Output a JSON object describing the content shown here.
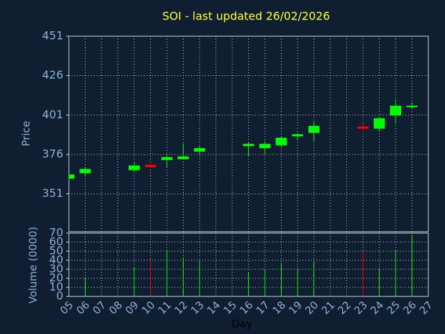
{
  "chart_data": [
    {
      "type": "candlestick",
      "title": "SOI - last updated 26/02/2026",
      "ylabel": "Price",
      "ylim": [
        327,
        451
      ],
      "yticks": [
        351,
        376,
        401,
        426,
        451
      ],
      "grid": true,
      "up_color": "#00ff00",
      "down_color": "#ff0000",
      "open": [
        360.6,
        364.1,
        null,
        null,
        366.0,
        369.4,
        372.5,
        373.0,
        377.8,
        null,
        null,
        381.3,
        380.0,
        381.8,
        387.5,
        389.7,
        null,
        null,
        393.7,
        392.4,
        400.7,
        406.0,
        null
      ],
      "high": [
        363.8,
        368.0,
        null,
        null,
        370.8,
        369.8,
        376.0,
        382.7,
        381.3,
        null,
        null,
        383.5,
        384.4,
        387.0,
        389.7,
        396.8,
        null,
        null,
        395.9,
        399.9,
        410.9,
        409.1,
        null
      ],
      "low": [
        360.0,
        362.0,
        null,
        null,
        365.0,
        367.5,
        368.0,
        373.0,
        376.0,
        null,
        null,
        374.7,
        376.0,
        381.0,
        384.9,
        384.4,
        null,
        null,
        390.2,
        391.0,
        395.4,
        404.7,
        null
      ],
      "close": [
        363.3,
        366.8,
        null,
        null,
        369.0,
        368.0,
        374.3,
        374.7,
        380.0,
        null,
        null,
        382.7,
        382.7,
        386.6,
        388.8,
        394.1,
        null,
        null,
        392.4,
        399.0,
        406.9,
        406.9,
        null
      ]
    },
    {
      "type": "bar",
      "xlabel": "Day",
      "ylabel": "Volume (0000)",
      "categories": [
        "05",
        "06",
        "07",
        "08",
        "09",
        "10",
        "11",
        "12",
        "13",
        "14",
        "15",
        "16",
        "17",
        "18",
        "19",
        "20",
        "21",
        "22",
        "23",
        "24",
        "25",
        "26",
        "27"
      ],
      "values": [
        null,
        20,
        null,
        null,
        33,
        41,
        52,
        43,
        40,
        null,
        null,
        26,
        30,
        37,
        31,
        38,
        null,
        null,
        51,
        31,
        51,
        68,
        null
      ],
      "ylim": [
        0,
        70
      ],
      "yticks": [
        0,
        10,
        20,
        30,
        40,
        50,
        60,
        70
      ],
      "grid": true
    }
  ]
}
